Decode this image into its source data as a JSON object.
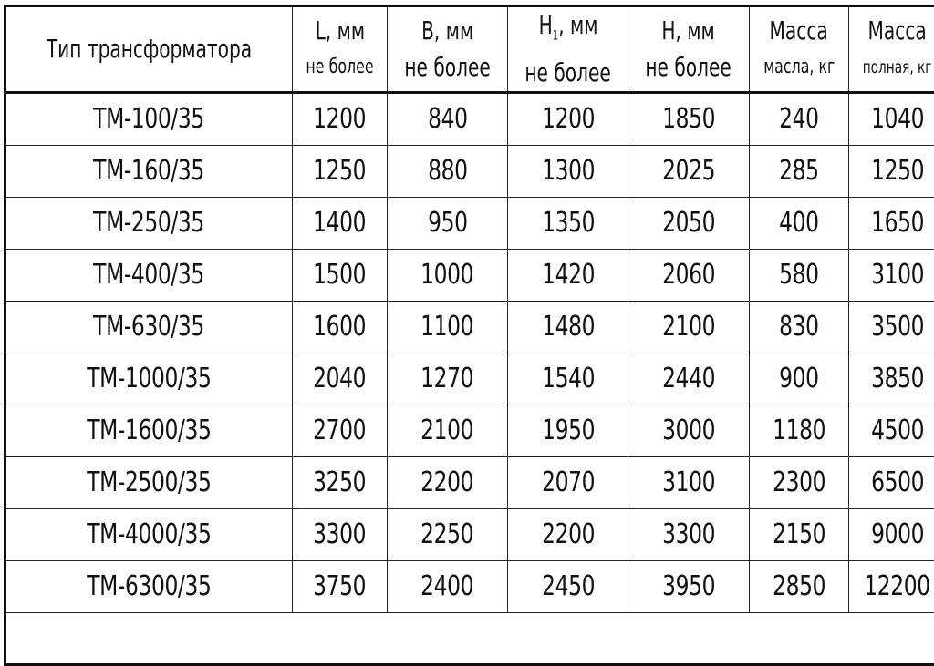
{
  "table": {
    "headers": [
      {
        "line1": "Тип трансформатора",
        "line2": ""
      },
      {
        "line1": "L, мм",
        "line2": "не более"
      },
      {
        "line1": "B, мм",
        "line2": "не более"
      },
      {
        "line1": "H",
        "sub": "1",
        "line1_rest": ", мм",
        "line2": "не более"
      },
      {
        "line1": "H, мм",
        "line2": "не более"
      },
      {
        "line1": "Масса",
        "line2": "масла, кг"
      },
      {
        "line1": "Масса",
        "line2": "полная, кг"
      }
    ],
    "rows": [
      [
        "ТМ-100/35",
        "1200",
        "840",
        "1200",
        "1850",
        "240",
        "1040"
      ],
      [
        "ТМ-160/35",
        "1250",
        "880",
        "1300",
        "2025",
        "285",
        "1250"
      ],
      [
        "ТМ-250/35",
        "1400",
        "950",
        "1350",
        "2050",
        "400",
        "1650"
      ],
      [
        "ТМ-400/35",
        "1500",
        "1000",
        "1420",
        "2060",
        "580",
        "3100"
      ],
      [
        "ТМ-630/35",
        "1600",
        "1100",
        "1480",
        "2100",
        "830",
        "3500"
      ],
      [
        "ТМ-1000/35",
        "2040",
        "1270",
        "1540",
        "2440",
        "900",
        "3850"
      ],
      [
        "ТМ-1600/35",
        "2700",
        "2100",
        "1950",
        "3000",
        "1180",
        "4500"
      ],
      [
        "ТМ-2500/35",
        "3250",
        "2200",
        "2070",
        "3100",
        "2300",
        "6500"
      ],
      [
        "ТМ-4000/35",
        "3300",
        "2250",
        "2200",
        "3300",
        "2150",
        "9000"
      ],
      [
        "ТМ-6300/35",
        "3750",
        "2400",
        "2450",
        "3950",
        "2850",
        "12200"
      ]
    ]
  }
}
